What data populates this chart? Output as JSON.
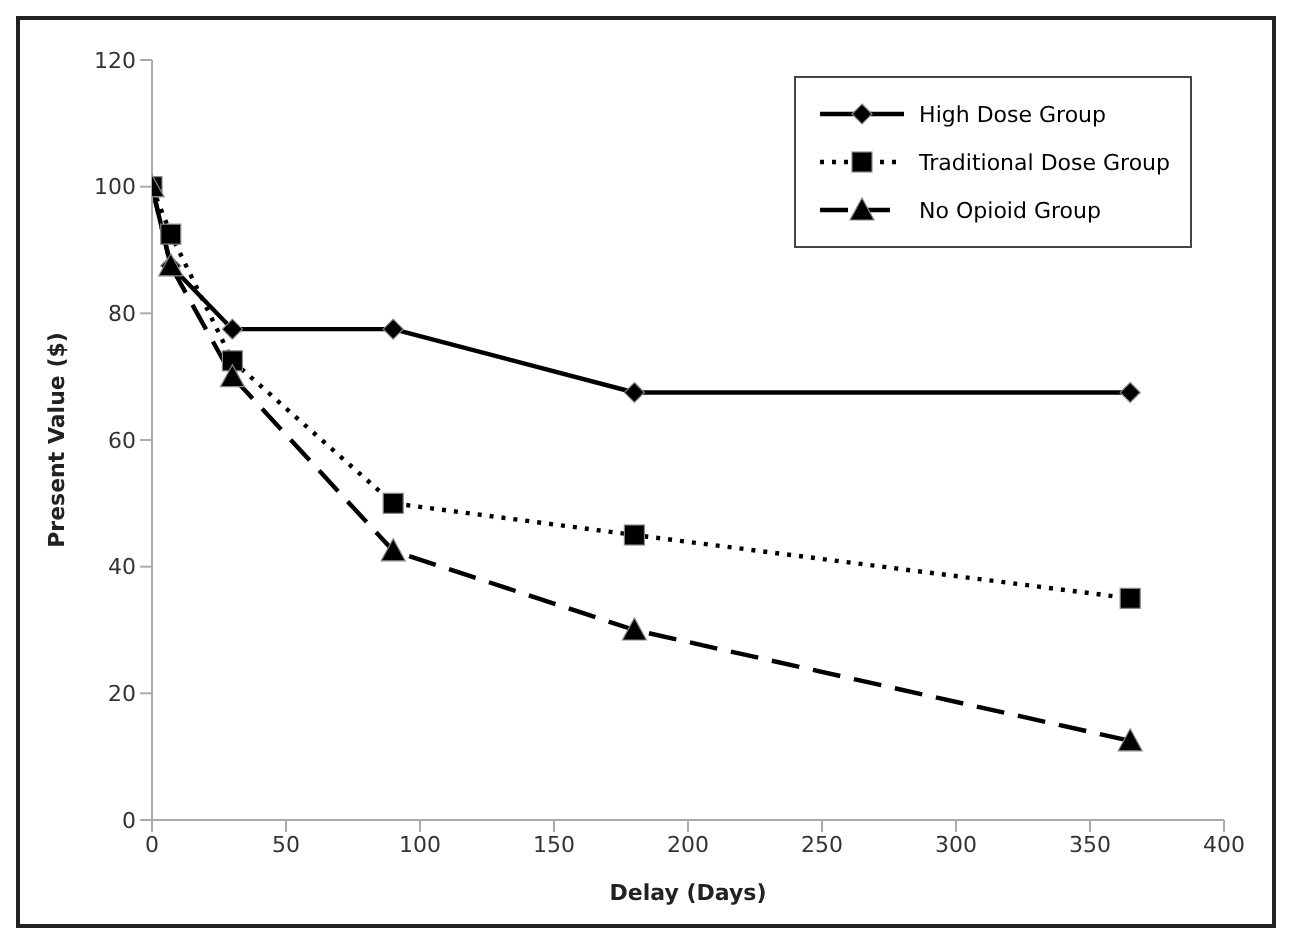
{
  "chart_data": {
    "type": "line",
    "xlabel": "Delay (Days)",
    "ylabel": "Present Value ($)",
    "x": [
      0,
      7,
      30,
      90,
      180,
      365
    ],
    "series": [
      {
        "name": "High Dose Group",
        "color": "#000000",
        "values": [
          100,
          87.5,
          77.5,
          77.5,
          67.5,
          67.5
        ],
        "marker": "diamond",
        "line_style": "solid"
      },
      {
        "name": "Traditional Dose Group",
        "color": "#000000",
        "values": [
          100,
          92.5,
          72.5,
          50,
          45,
          35
        ],
        "marker": "square",
        "line_style": "dotted"
      },
      {
        "name": "No Opioid Group",
        "color": "#000000",
        "values": [
          100,
          87.5,
          70,
          42.5,
          30,
          12.5
        ],
        "marker": "triangle",
        "line_style": "dashed"
      }
    ],
    "xlim": [
      0,
      400
    ],
    "xticks": [
      0,
      50,
      100,
      150,
      200,
      250,
      300,
      350,
      400
    ],
    "ylim": [
      0,
      120
    ],
    "yticks": [
      0,
      20,
      40,
      60,
      80,
      100,
      120
    ],
    "grid": false,
    "legend": "top right"
  }
}
